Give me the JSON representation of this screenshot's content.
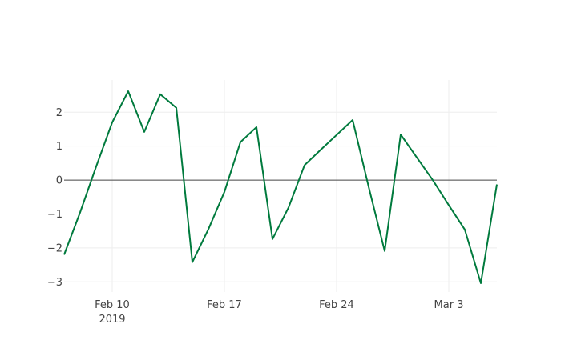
{
  "chart_data": {
    "type": "line",
    "title": "",
    "xlabel": "",
    "ylabel": "",
    "grid": true,
    "zero_line": true,
    "x_axis": {
      "type": "date",
      "range": [
        "2019-02-07",
        "2019-03-06"
      ],
      "ticks": [
        {
          "value": "2019-02-10",
          "label": "Feb 10",
          "sublabel": "2019"
        },
        {
          "value": "2019-02-17",
          "label": "Feb 17"
        },
        {
          "value": "2019-02-24",
          "label": "Feb 24"
        },
        {
          "value": "2019-03-03",
          "label": "Mar 3"
        }
      ]
    },
    "y_axis": {
      "range": [
        -3.3,
        2.95
      ],
      "ticks": [
        {
          "value": 2,
          "label": "2"
        },
        {
          "value": 1,
          "label": "1"
        },
        {
          "value": 0,
          "label": "0"
        },
        {
          "value": -1,
          "label": "−1"
        },
        {
          "value": -2,
          "label": "−2"
        },
        {
          "value": -3,
          "label": "−3"
        }
      ]
    },
    "series": [
      {
        "color": "#007a3d",
        "x": [
          "2019-02-07",
          "2019-02-08",
          "2019-02-09",
          "2019-02-10",
          "2019-02-11",
          "2019-02-12",
          "2019-02-13",
          "2019-02-14",
          "2019-02-15",
          "2019-02-16",
          "2019-02-17",
          "2019-02-18",
          "2019-02-19",
          "2019-02-20",
          "2019-02-21",
          "2019-02-22",
          "2019-02-23",
          "2019-02-24",
          "2019-02-25",
          "2019-02-26",
          "2019-02-27",
          "2019-02-28",
          "2019-03-01",
          "2019-03-02",
          "2019-03-03",
          "2019-03-04",
          "2019-03-05",
          "2019-03-06"
        ],
        "y": [
          -2.2,
          -0.95,
          0.4,
          1.7,
          2.62,
          1.42,
          2.53,
          2.13,
          -2.42,
          -1.45,
          -0.35,
          1.12,
          1.56,
          -1.74,
          -0.81,
          0.44,
          0.89,
          1.33,
          1.77,
          -0.2,
          -2.09,
          1.34,
          0.67,
          0.0,
          -0.74,
          -1.46,
          -3.04,
          -0.13
        ]
      }
    ]
  }
}
